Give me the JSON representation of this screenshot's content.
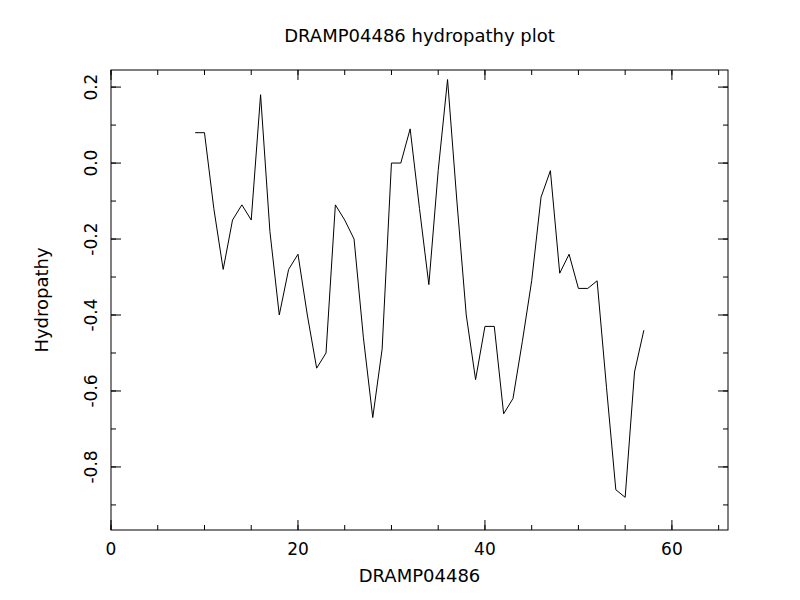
{
  "chart_data": {
    "type": "line",
    "title": "DRAMP04486 hydropathy plot",
    "x_label": "DRAMP04486",
    "y_label": "Hydropathy",
    "x": [
      9,
      10,
      11,
      12,
      13,
      14,
      15,
      16,
      17,
      18,
      19,
      20,
      21,
      22,
      23,
      24,
      25,
      26,
      27,
      28,
      29,
      30,
      31,
      32,
      33,
      34,
      35,
      36,
      37,
      38,
      39,
      40,
      41,
      42,
      43,
      44,
      45,
      46,
      47,
      48,
      49,
      50,
      51,
      52,
      53,
      54,
      55,
      56,
      57
    ],
    "values": [
      0.08,
      0.08,
      -0.12,
      -0.28,
      -0.15,
      -0.11,
      -0.15,
      0.18,
      -0.18,
      -0.4,
      -0.28,
      -0.24,
      -0.4,
      -0.54,
      -0.5,
      -0.11,
      -0.15,
      -0.2,
      -0.46,
      -0.67,
      -0.49,
      0.0,
      0.0,
      0.09,
      -0.12,
      -0.32,
      -0.02,
      0.22,
      -0.1,
      -0.4,
      -0.57,
      -0.43,
      -0.43,
      -0.66,
      -0.62,
      -0.47,
      -0.31,
      -0.09,
      -0.02,
      -0.29,
      -0.24,
      -0.33,
      -0.33,
      -0.31,
      -0.59,
      -0.86,
      -0.88,
      -0.55,
      -0.44
    ],
    "color": "#000000",
    "xlim": [
      0,
      66
    ],
    "ylim": [
      -0.966,
      0.245
    ],
    "xticks": [
      0,
      20,
      40,
      60
    ],
    "yticks": [
      0.2,
      {
        "value": 0,
        "label": "0.0"
      },
      -0.2,
      -0.4,
      -0.6,
      -0.8
    ],
    "grid": false
  }
}
